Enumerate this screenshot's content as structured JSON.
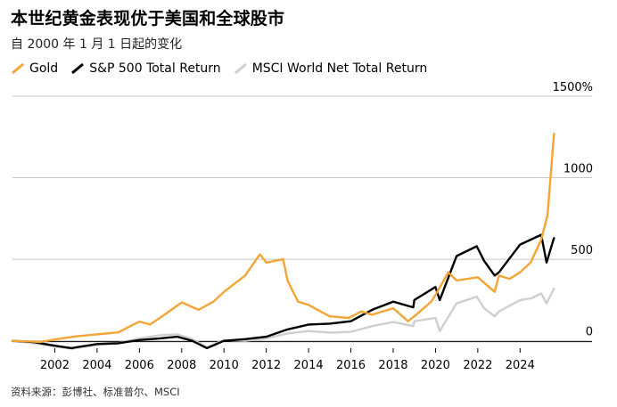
{
  "header": {
    "title": "本世纪黄金表现优于美国和全球股市",
    "subtitle": "自 2000 年 1 月 1 日起的变化"
  },
  "legend": {
    "items": [
      {
        "label": "Gold",
        "color": "#f4a536"
      },
      {
        "label": "S&P 500 Total Return",
        "color": "#000000"
      },
      {
        "label": "MSCI World Net Total Return",
        "color": "#cfcfcf"
      }
    ]
  },
  "source": "资料来源：彭博社、标准普尔、MSCI",
  "chart_data": {
    "type": "line",
    "title": "本世纪黄金表现优于美国和全球股市",
    "subtitle": "自 2000 年 1 月 1 日起的变化",
    "xlim": [
      2000,
      2025.8
    ],
    "ylim": [
      -40,
      1500
    ],
    "y_ticks": [
      0,
      500,
      1000,
      1500
    ],
    "y_tick_labels": [
      "0",
      "500",
      "1000",
      "1500%"
    ],
    "x_ticks": [
      "2002",
      "2004",
      "2006",
      "2008",
      "2010",
      "2012",
      "2014",
      "2016",
      "2018",
      "2020",
      "2022",
      "2024"
    ],
    "grid": "horizontal",
    "legend_position": "top-left",
    "series": [
      {
        "name": "Gold",
        "color": "#f4a536",
        "x": [
          2000,
          2001,
          2001.3,
          2002,
          2003,
          2004,
          2005,
          2006,
          2006.5,
          2007,
          2008,
          2008.2,
          2008.8,
          2009.5,
          2010,
          2011,
          2011.7,
          2012,
          2012.8,
          2013,
          2013.5,
          2014,
          2015,
          2015.9,
          2016.5,
          2017,
          2018,
          2018.7,
          2019,
          2019.8,
          2020,
          2020.6,
          2021,
          2022,
          2022.8,
          2023,
          2023.5,
          2024,
          2024.5,
          2025,
          2025.3,
          2025.6
        ],
        "y": [
          0,
          -5,
          -8,
          8,
          27,
          40,
          52,
          118,
          100,
          143,
          235,
          225,
          190,
          240,
          300,
          400,
          530,
          480,
          500,
          370,
          240,
          220,
          150,
          140,
          180,
          160,
          200,
          120,
          150,
          240,
          280,
          420,
          370,
          390,
          300,
          400,
          380,
          420,
          480,
          620,
          770,
          1270
        ]
      },
      {
        "name": "S&P 500 Total Return",
        "color": "#000000",
        "x": [
          2000,
          2001,
          2002,
          2002.8,
          2003,
          2004,
          2005,
          2006,
          2007,
          2007.8,
          2008.5,
          2009.2,
          2010,
          2011,
          2012,
          2013,
          2014,
          2015,
          2016,
          2017,
          2018,
          2018.95,
          2019,
          2020,
          2020.2,
          2021,
          2021.95,
          2022.3,
          2022.8,
          2023,
          2024,
          2024.5,
          2025,
          2025.25,
          2025.6
        ],
        "y": [
          0,
          -8,
          -30,
          -45,
          -40,
          -20,
          -15,
          5,
          15,
          25,
          0,
          -45,
          0,
          10,
          25,
          70,
          100,
          105,
          120,
          190,
          240,
          205,
          250,
          330,
          250,
          520,
          580,
          490,
          400,
          420,
          590,
          620,
          650,
          480,
          630
        ]
      },
      {
        "name": "MSCI World Net Total Return",
        "color": "#cfcfcf",
        "x": [
          2000,
          2001,
          2002,
          2002.8,
          2003,
          2004,
          2005,
          2006,
          2007,
          2007.8,
          2008.5,
          2009.2,
          2010,
          2011,
          2012,
          2013,
          2014,
          2015,
          2016,
          2017,
          2018,
          2018.95,
          2019,
          2020,
          2020.2,
          2021,
          2021.95,
          2022.3,
          2022.8,
          2023,
          2024,
          2024.5,
          2025,
          2025.25,
          2025.6
        ],
        "y": [
          0,
          -15,
          -35,
          -48,
          -45,
          -25,
          -15,
          15,
          35,
          40,
          10,
          -40,
          5,
          0,
          15,
          45,
          60,
          50,
          55,
          90,
          115,
          90,
          120,
          140,
          60,
          230,
          270,
          200,
          150,
          180,
          250,
          260,
          290,
          230,
          320
        ]
      }
    ]
  }
}
